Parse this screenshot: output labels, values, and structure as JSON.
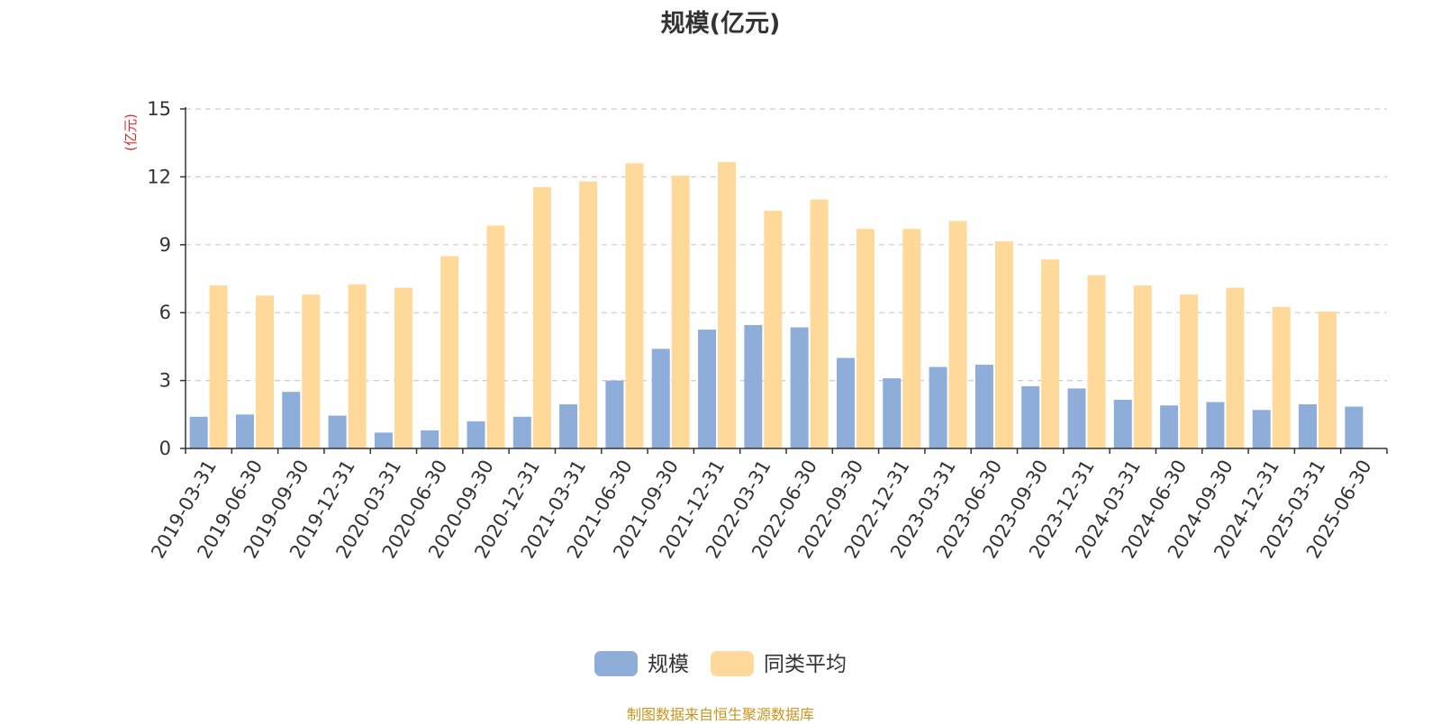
{
  "chart_data": {
    "type": "bar",
    "title": "规模(亿元)",
    "ylabel": "(亿元)",
    "xlabel": "",
    "ylim": [
      0,
      15
    ],
    "yticks": [
      0,
      3,
      6,
      9,
      12,
      15
    ],
    "grid": true,
    "legend_position": "bottom",
    "categories": [
      "2019-03-31",
      "2019-06-30",
      "2019-09-30",
      "2019-12-31",
      "2020-03-31",
      "2020-06-30",
      "2020-09-30",
      "2020-12-31",
      "2021-03-31",
      "2021-06-30",
      "2021-09-30",
      "2021-12-31",
      "2022-03-31",
      "2022-06-30",
      "2022-09-30",
      "2022-12-31",
      "2023-03-31",
      "2023-06-30",
      "2023-09-30",
      "2023-12-31",
      "2024-03-31",
      "2024-06-30",
      "2024-09-30",
      "2024-12-31",
      "2025-03-31",
      "2025-06-30"
    ],
    "series": [
      {
        "name": "规模",
        "color": "#8eadd9",
        "values": [
          1.4,
          1.5,
          2.5,
          1.45,
          0.7,
          0.8,
          1.2,
          1.4,
          1.95,
          3.0,
          4.4,
          5.25,
          5.45,
          5.35,
          4.0,
          3.1,
          3.6,
          3.7,
          2.75,
          2.65,
          2.15,
          1.9,
          2.05,
          1.7,
          1.95,
          1.85
        ]
      },
      {
        "name": "同类平均",
        "color": "#ffd99a",
        "values": [
          7.2,
          6.75,
          6.8,
          7.25,
          7.1,
          8.5,
          9.85,
          11.55,
          11.8,
          12.6,
          12.05,
          12.65,
          10.5,
          11.0,
          9.7,
          9.7,
          10.05,
          9.15,
          8.35,
          7.65,
          7.2,
          6.8,
          7.1,
          6.25,
          6.05,
          null
        ]
      }
    ]
  },
  "source_note": "制图数据来自恒生聚源数据库",
  "colors": {
    "axis": "#333333",
    "grid": "#cccccc",
    "ylabel": "#e8282d",
    "text": "#333333"
  }
}
